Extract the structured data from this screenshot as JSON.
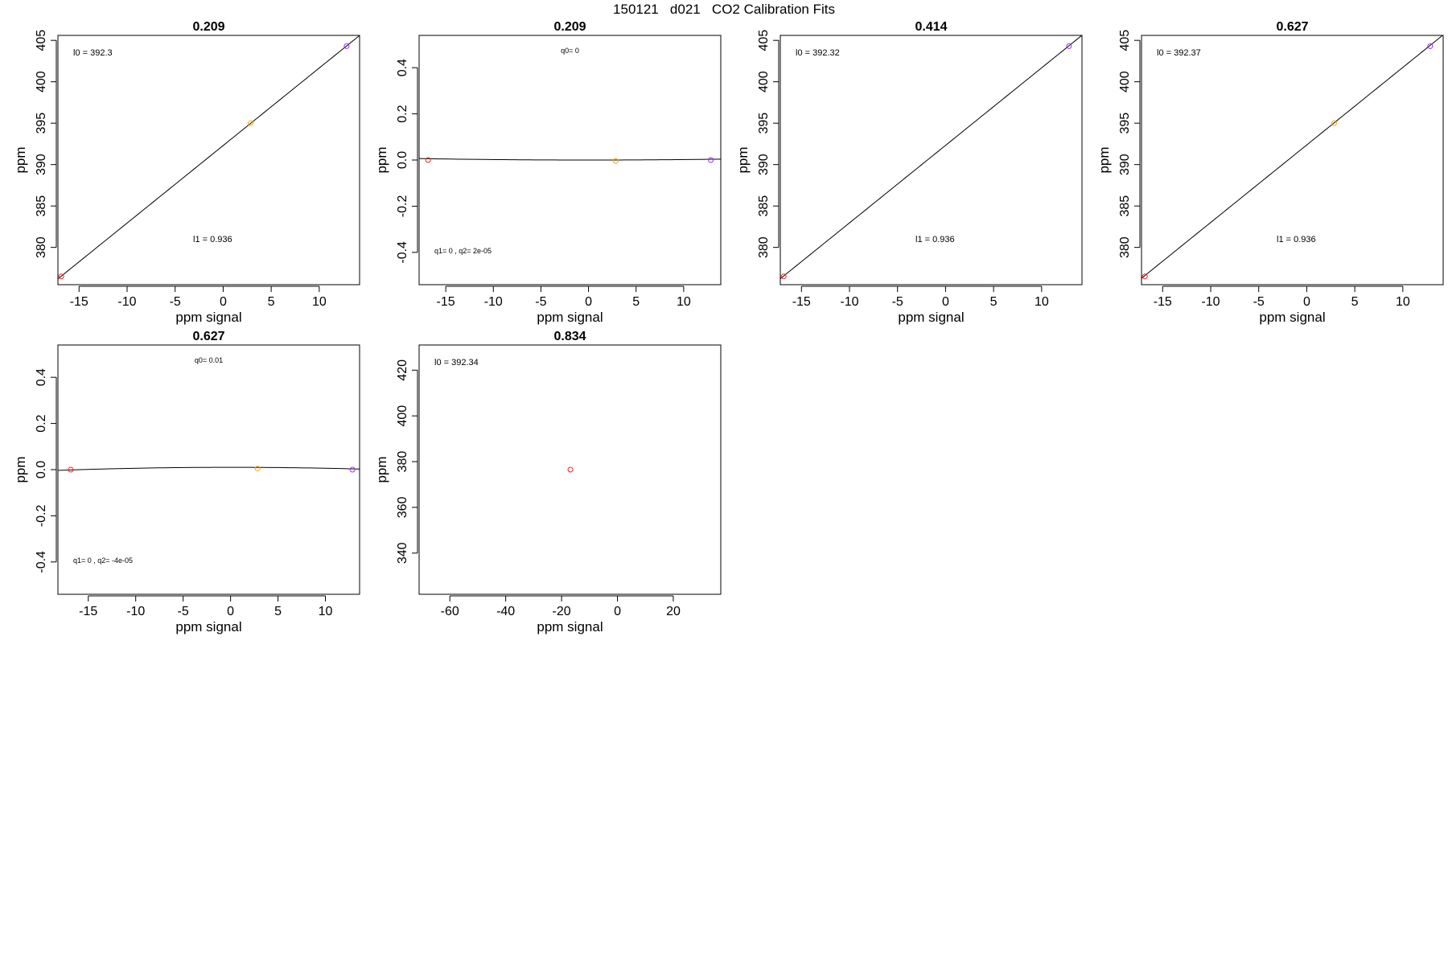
{
  "figure": {
    "title": "150121   d021   CO2 Calibration Fits"
  },
  "colors": {
    "point_low": "#ee2222",
    "point_mid": "#ffa500",
    "point_high": "#9933ee",
    "line": "#000000",
    "frame": "#000000"
  },
  "chart_data": [
    {
      "type": "scatter",
      "title": "0.209",
      "xlabel": "ppm signal",
      "ylabel": "ppm",
      "xlim": [
        -17.2,
        14.2
      ],
      "ylim": [
        375.5,
        405.6
      ],
      "xticks": [
        -15,
        -10,
        -5,
        0,
        5,
        10
      ],
      "yticks": [
        380,
        385,
        390,
        395,
        400,
        405
      ],
      "points": [
        {
          "x": -16.85,
          "y": 376.5,
          "color": "#ee2222"
        },
        {
          "x": 2.85,
          "y": 395.0,
          "color": "#ffa500"
        },
        {
          "x": 12.85,
          "y": 404.3,
          "color": "#9933ee"
        }
      ],
      "fit": {
        "kind": "linear",
        "intercept": 392.3,
        "slope": 0.936
      },
      "annotations": [
        {
          "text": "l0 =  392.3",
          "pos": "top-left"
        },
        {
          "text": "l1 =  0.936",
          "pos": "lower-middle"
        }
      ]
    },
    {
      "type": "scatter",
      "title": "0.209",
      "xlabel": "ppm signal",
      "ylabel": "ppm",
      "xlim": [
        -17.8,
        13.9
      ],
      "ylim": [
        -0.54,
        0.54
      ],
      "xticks": [
        -15,
        -10,
        -5,
        0,
        5,
        10
      ],
      "yticks": [
        -0.4,
        -0.2,
        0.0,
        0.2,
        0.4
      ],
      "points": [
        {
          "x": -16.85,
          "y": 0.0,
          "color": "#ee2222"
        },
        {
          "x": 2.85,
          "y": -0.004,
          "color": "#ffa500"
        },
        {
          "x": 12.85,
          "y": 0.0,
          "color": "#9933ee"
        }
      ],
      "fit": {
        "kind": "quadratic",
        "q0": 0,
        "q1": 0,
        "q2": 2e-05
      },
      "annotations": [
        {
          "text": "q0= 0",
          "pos": "top-center"
        },
        {
          "text": "q1= 0 , q2= 2e-05",
          "pos": "bottom-left"
        }
      ]
    },
    {
      "type": "scatter",
      "title": "0.414",
      "xlabel": "ppm signal",
      "ylabel": "ppm",
      "xlim": [
        -17.2,
        14.2
      ],
      "ylim": [
        375.5,
        405.6
      ],
      "xticks": [
        -15,
        -10,
        -5,
        0,
        5,
        10
      ],
      "yticks": [
        380,
        385,
        390,
        395,
        400,
        405
      ],
      "points": [
        {
          "x": -16.85,
          "y": 376.5,
          "color": "#ee2222"
        },
        {
          "x": 12.85,
          "y": 404.3,
          "color": "#9933ee"
        }
      ],
      "fit": {
        "kind": "linear",
        "intercept": 392.32,
        "slope": 0.936
      },
      "annotations": [
        {
          "text": "l0 =  392.32",
          "pos": "top-left"
        },
        {
          "text": "l1 =  0.936",
          "pos": "lower-middle"
        }
      ]
    },
    {
      "type": "scatter",
      "title": "0.627",
      "xlabel": "ppm signal",
      "ylabel": "ppm",
      "xlim": [
        -17.2,
        14.2
      ],
      "ylim": [
        375.5,
        405.6
      ],
      "xticks": [
        -15,
        -10,
        -5,
        0,
        5,
        10
      ],
      "yticks": [
        380,
        385,
        390,
        395,
        400,
        405
      ],
      "points": [
        {
          "x": -16.85,
          "y": 376.5,
          "color": "#ee2222"
        },
        {
          "x": 2.85,
          "y": 395.0,
          "color": "#ffa500"
        },
        {
          "x": 12.85,
          "y": 404.3,
          "color": "#9933ee"
        }
      ],
      "fit": {
        "kind": "linear",
        "intercept": 392.37,
        "slope": 0.936
      },
      "annotations": [
        {
          "text": "l0 =  392.37",
          "pos": "top-left"
        },
        {
          "text": "l1 =  0.936",
          "pos": "lower-middle"
        }
      ]
    },
    {
      "type": "scatter",
      "title": "0.627",
      "xlabel": "ppm signal",
      "ylabel": "ppm",
      "xlim": [
        -18.2,
        13.6
      ],
      "ylim": [
        -0.54,
        0.54
      ],
      "xticks": [
        -15,
        -10,
        -5,
        0,
        5,
        10
      ],
      "yticks": [
        -0.4,
        -0.2,
        0.0,
        0.2,
        0.4
      ],
      "points": [
        {
          "x": -16.85,
          "y": 0.0,
          "color": "#ee2222"
        },
        {
          "x": 2.85,
          "y": 0.005,
          "color": "#ffa500"
        },
        {
          "x": 12.85,
          "y": 0.0,
          "color": "#9933ee"
        }
      ],
      "fit": {
        "kind": "quadratic",
        "q0": 0.01,
        "q1": 0,
        "q2": -4e-05
      },
      "annotations": [
        {
          "text": "q0= 0.01",
          "pos": "top-center"
        },
        {
          "text": "q1= 0 , q2= -4e-05",
          "pos": "bottom-left"
        }
      ]
    },
    {
      "type": "scatter",
      "title": "0.834",
      "xlabel": "ppm signal",
      "ylabel": "ppm",
      "xlim": [
        -71,
        37
      ],
      "ylim": [
        322,
        431
      ],
      "xticks": [
        -60,
        -40,
        -20,
        0,
        20
      ],
      "yticks": [
        340,
        360,
        380,
        400,
        420
      ],
      "points": [
        {
          "x": -16.85,
          "y": 376.5,
          "color": "#ee2222"
        }
      ],
      "fit": null,
      "annotations": [
        {
          "text": "l0 =  392.34",
          "pos": "top-left"
        }
      ]
    }
  ]
}
